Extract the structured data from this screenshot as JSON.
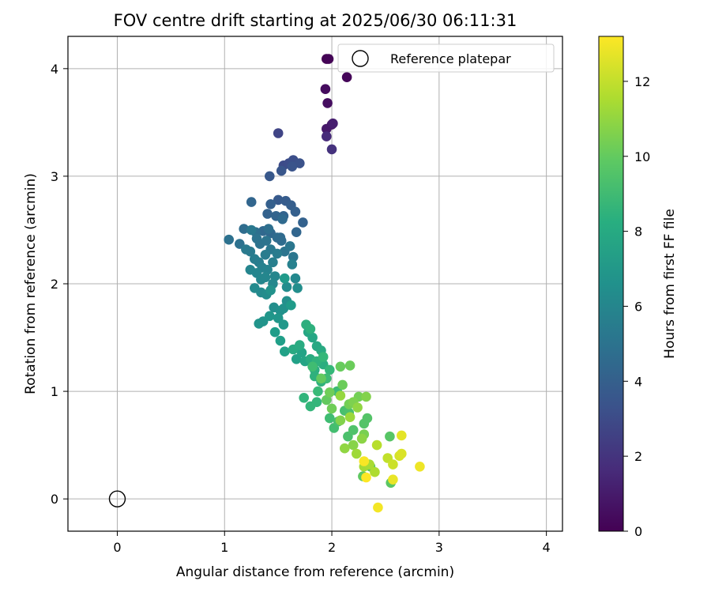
{
  "chart_data": {
    "type": "scatter",
    "title": "FOV centre drift starting at 2025/06/30 06:11:31",
    "xlabel": "Angular distance from reference (arcmin)",
    "ylabel": "Rotation from reference (arcmin)",
    "xlim": [
      -0.46,
      4.15
    ],
    "ylim": [
      -0.3,
      4.3
    ],
    "xticks": [
      0,
      1,
      2,
      3,
      4
    ],
    "yticks": [
      0,
      1,
      2,
      3,
      4
    ],
    "grid": true,
    "legend": {
      "placement": "top-right",
      "label": "Reference platepar"
    },
    "reference_point": {
      "x": 0,
      "y": 0
    },
    "colorbar": {
      "label": "Hours from first FF file",
      "colormap": "viridis",
      "range": [
        0,
        13.2
      ],
      "ticks": [
        0,
        2,
        4,
        6,
        8,
        10,
        12
      ]
    },
    "series": [
      {
        "points": [
          [
            1.95,
            4.09,
            0.0
          ],
          [
            1.97,
            4.09,
            0.1
          ],
          [
            2.14,
            3.92,
            0.2
          ],
          [
            1.94,
            3.81,
            0.4
          ],
          [
            1.96,
            3.68,
            0.5
          ],
          [
            2.0,
            3.48,
            0.7
          ],
          [
            1.95,
            3.44,
            0.9
          ],
          [
            2.01,
            3.49,
            1.1
          ],
          [
            1.95,
            3.37,
            1.6
          ],
          [
            2.0,
            3.25,
            1.9
          ],
          [
            1.5,
            3.4,
            2.7
          ],
          [
            1.55,
            3.1,
            3.0
          ],
          [
            1.6,
            3.12,
            3.1
          ],
          [
            1.64,
            3.15,
            3.2
          ],
          [
            1.7,
            3.12,
            3.3
          ],
          [
            1.63,
            3.09,
            3.4
          ],
          [
            1.53,
            3.05,
            3.5
          ],
          [
            1.42,
            3.0,
            3.6
          ],
          [
            1.5,
            2.78,
            3.7
          ],
          [
            1.57,
            2.77,
            3.8
          ],
          [
            1.62,
            2.73,
            3.9
          ],
          [
            1.43,
            2.74,
            4.0
          ],
          [
            1.66,
            2.67,
            4.0
          ],
          [
            1.73,
            2.57,
            4.1
          ],
          [
            1.4,
            2.65,
            4.1
          ],
          [
            1.48,
            2.63,
            4.2
          ],
          [
            1.55,
            2.63,
            4.2
          ],
          [
            1.67,
            2.48,
            4.3
          ],
          [
            1.25,
            2.76,
            4.3
          ],
          [
            1.36,
            2.49,
            4.4
          ],
          [
            1.43,
            2.47,
            4.4
          ],
          [
            1.52,
            2.43,
            4.5
          ],
          [
            1.54,
            2.6,
            4.5
          ],
          [
            1.49,
            2.43,
            4.6
          ],
          [
            1.53,
            2.4,
            4.6
          ],
          [
            1.18,
            2.51,
            4.7
          ],
          [
            1.29,
            2.48,
            4.8
          ],
          [
            1.41,
            2.51,
            4.8
          ],
          [
            1.04,
            2.41,
            4.9
          ],
          [
            1.14,
            2.37,
            4.9
          ],
          [
            1.3,
            2.42,
            5.0
          ],
          [
            1.33,
            2.37,
            5.0
          ],
          [
            1.39,
            2.4,
            5.1
          ],
          [
            1.56,
            2.3,
            5.1
          ],
          [
            1.61,
            2.35,
            5.2
          ],
          [
            1.64,
            2.25,
            5.2
          ],
          [
            1.25,
            2.5,
            5.3
          ],
          [
            1.43,
            2.32,
            5.3
          ],
          [
            1.2,
            2.32,
            5.4
          ],
          [
            1.24,
            2.3,
            5.4
          ],
          [
            1.38,
            2.27,
            5.5
          ],
          [
            1.49,
            2.28,
            5.5
          ],
          [
            1.28,
            2.23,
            5.6
          ],
          [
            1.32,
            2.2,
            5.6
          ],
          [
            1.45,
            2.2,
            5.7
          ],
          [
            1.35,
            2.15,
            5.8
          ],
          [
            1.63,
            2.18,
            5.8
          ],
          [
            1.4,
            2.13,
            5.9
          ],
          [
            1.24,
            2.13,
            6.0
          ],
          [
            1.3,
            2.1,
            6.0
          ],
          [
            1.34,
            2.04,
            6.1
          ],
          [
            1.38,
            2.06,
            6.1
          ],
          [
            1.47,
            2.07,
            6.1
          ],
          [
            1.66,
            2.05,
            6.2
          ],
          [
            1.45,
            2.0,
            6.2
          ],
          [
            1.28,
            1.96,
            6.3
          ],
          [
            1.34,
            1.92,
            6.3
          ],
          [
            1.39,
            1.9,
            6.4
          ],
          [
            1.58,
            1.97,
            6.4
          ],
          [
            1.68,
            1.96,
            6.5
          ],
          [
            1.46,
            1.78,
            6.5
          ],
          [
            1.58,
            1.84,
            6.6
          ],
          [
            1.52,
            1.75,
            6.6
          ],
          [
            1.43,
            1.94,
            6.7
          ],
          [
            1.55,
            1.77,
            6.7
          ],
          [
            1.32,
            1.63,
            6.8
          ],
          [
            1.36,
            1.65,
            6.8
          ],
          [
            1.42,
            1.7,
            6.9
          ],
          [
            1.5,
            1.68,
            6.9
          ],
          [
            1.55,
            1.62,
            7.0
          ],
          [
            1.56,
            2.05,
            7.1
          ],
          [
            1.62,
            1.8,
            7.2
          ],
          [
            1.47,
            1.55,
            7.3
          ],
          [
            1.52,
            1.47,
            7.4
          ],
          [
            1.56,
            1.37,
            7.5
          ],
          [
            1.67,
            1.3,
            7.5
          ],
          [
            1.72,
            1.36,
            7.6
          ],
          [
            1.75,
            1.28,
            7.7
          ],
          [
            1.78,
            1.55,
            7.8
          ],
          [
            1.82,
            1.5,
            7.8
          ],
          [
            1.86,
            1.42,
            7.9
          ],
          [
            1.9,
            1.38,
            8.0
          ],
          [
            1.64,
            1.39,
            8.0
          ],
          [
            1.7,
            1.43,
            8.1
          ],
          [
            1.8,
            1.3,
            8.1
          ],
          [
            1.84,
            1.2,
            8.2
          ],
          [
            1.92,
            1.25,
            8.2
          ],
          [
            1.76,
            1.62,
            8.3
          ],
          [
            1.8,
            1.58,
            8.4
          ],
          [
            1.84,
            1.14,
            8.4
          ],
          [
            1.9,
            1.09,
            8.5
          ],
          [
            1.86,
            1.28,
            8.5
          ],
          [
            1.74,
            0.94,
            8.6
          ],
          [
            1.8,
            0.86,
            8.7
          ],
          [
            1.86,
            0.9,
            8.7
          ],
          [
            1.98,
            1.2,
            8.8
          ],
          [
            1.92,
            1.32,
            8.8
          ],
          [
            1.87,
            1.0,
            8.9
          ],
          [
            1.95,
            1.12,
            9.0
          ],
          [
            2.05,
            1.0,
            9.0
          ],
          [
            1.82,
            1.23,
            9.1
          ],
          [
            1.98,
            0.75,
            9.1
          ],
          [
            2.02,
            0.66,
            9.2
          ],
          [
            2.06,
            0.72,
            9.3
          ],
          [
            2.12,
            0.82,
            9.3
          ],
          [
            2.16,
            0.8,
            9.4
          ],
          [
            2.15,
            0.58,
            9.4
          ],
          [
            2.2,
            0.64,
            9.5
          ],
          [
            2.3,
            0.7,
            9.6
          ],
          [
            2.33,
            0.75,
            9.6
          ],
          [
            2.54,
            0.58,
            9.7
          ],
          [
            2.55,
            0.15,
            9.8
          ],
          [
            2.36,
            0.3,
            9.8
          ],
          [
            2.29,
            0.21,
            9.9
          ],
          [
            1.9,
            1.12,
            10.0
          ],
          [
            1.95,
            0.92,
            10.0
          ],
          [
            2.08,
            1.23,
            10.1
          ],
          [
            2.17,
            1.24,
            10.2
          ],
          [
            2.1,
            1.06,
            10.2
          ],
          [
            1.98,
            0.99,
            10.3
          ],
          [
            2.0,
            0.84,
            10.3
          ],
          [
            2.25,
            0.95,
            10.4
          ],
          [
            2.16,
            0.88,
            10.4
          ],
          [
            2.3,
            0.6,
            10.5
          ],
          [
            2.2,
            0.9,
            10.6
          ],
          [
            2.32,
            0.95,
            10.7
          ],
          [
            2.08,
            0.73,
            10.7
          ],
          [
            2.2,
            0.5,
            10.8
          ],
          [
            2.28,
            0.56,
            10.9
          ],
          [
            2.24,
            0.85,
            11.0
          ],
          [
            2.12,
            0.47,
            11.0
          ],
          [
            2.08,
            0.96,
            11.1
          ],
          [
            2.17,
            0.76,
            11.2
          ],
          [
            2.23,
            0.42,
            11.3
          ],
          [
            2.3,
            0.3,
            11.4
          ],
          [
            2.35,
            0.32,
            11.5
          ],
          [
            2.4,
            0.25,
            11.6
          ],
          [
            2.42,
            0.5,
            11.8
          ],
          [
            2.52,
            0.38,
            12.0
          ],
          [
            2.57,
            0.32,
            12.2
          ],
          [
            2.63,
            0.4,
            12.4
          ],
          [
            2.65,
            0.42,
            12.5
          ],
          [
            2.65,
            0.59,
            12.7
          ],
          [
            2.57,
            0.18,
            12.8
          ],
          [
            2.82,
            0.3,
            12.9
          ],
          [
            2.43,
            -0.08,
            13.0
          ],
          [
            2.3,
            0.35,
            13.1
          ],
          [
            2.32,
            0.2,
            13.2
          ]
        ]
      }
    ]
  }
}
